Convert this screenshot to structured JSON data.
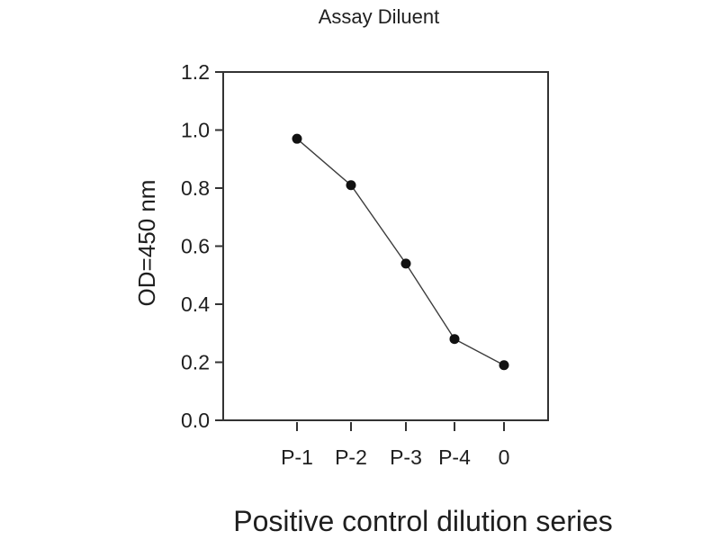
{
  "figure": {
    "background": "#ffffff"
  },
  "chart_data": {
    "type": "line",
    "title": "Assay Diluent",
    "xlabel": "Positive control dilution series",
    "ylabel": "OD=450 nm",
    "categories": [
      "P-1",
      "P-2",
      "P-3",
      "P-4",
      "0"
    ],
    "values": [
      0.97,
      0.81,
      0.54,
      0.28,
      0.19
    ],
    "ylim": [
      0.0,
      1.2
    ],
    "ytick_step": 0.2,
    "ytick_labels": [
      "0.0",
      "0.2",
      "0.4",
      "0.6",
      "0.8",
      "1.0",
      "1.2"
    ],
    "grid": false,
    "legend": "none",
    "marker": "filled-circle",
    "colors": {
      "marker": "#111111",
      "line": "#3d3d3d",
      "axis": "#333333",
      "text": "#1f1f1f"
    }
  }
}
